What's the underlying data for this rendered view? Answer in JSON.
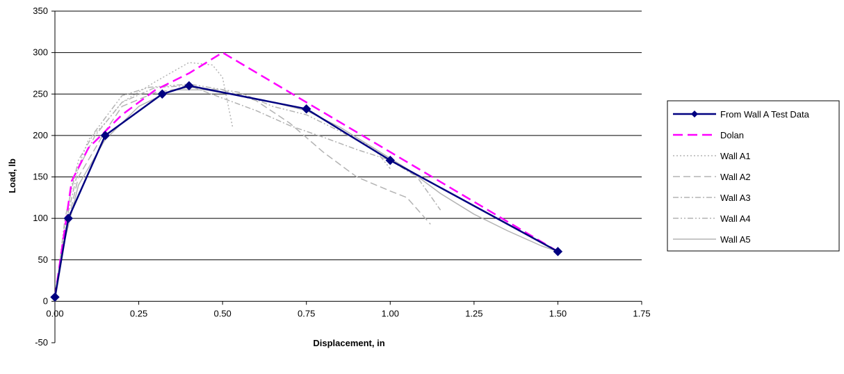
{
  "chart_data": {
    "type": "line",
    "title": "",
    "xlabel": "Displacement, in",
    "ylabel": "Load, lb",
    "xlim": [
      0,
      1.75
    ],
    "ylim": [
      -50,
      350
    ],
    "x_ticks": [
      "0.00",
      "0.25",
      "0.50",
      "0.75",
      "1.00",
      "1.25",
      "1.50",
      "1.75"
    ],
    "x_tick_values": [
      0,
      0.25,
      0.5,
      0.75,
      1.0,
      1.25,
      1.5,
      1.75
    ],
    "y_ticks": [
      "-50",
      "0",
      "50",
      "100",
      "150",
      "200",
      "250",
      "300",
      "350"
    ],
    "y_tick_values": [
      -50,
      0,
      50,
      100,
      150,
      200,
      250,
      300,
      350
    ],
    "grid": "horizontal",
    "legend_position": "right",
    "series": [
      {
        "name": "From Wall A Test Data",
        "color": "#000080",
        "style": "solid-marker",
        "points": [
          [
            0.0,
            5
          ],
          [
            0.04,
            100
          ],
          [
            0.15,
            200
          ],
          [
            0.32,
            250
          ],
          [
            0.4,
            260
          ],
          [
            0.75,
            232
          ],
          [
            1.0,
            170
          ],
          [
            1.5,
            60
          ]
        ]
      },
      {
        "name": "Dolan",
        "color": "#ff00ff",
        "style": "dashed",
        "points": [
          [
            0.0,
            5
          ],
          [
            0.05,
            145
          ],
          [
            0.1,
            185
          ],
          [
            0.2,
            225
          ],
          [
            0.3,
            255
          ],
          [
            0.4,
            275
          ],
          [
            0.5,
            300
          ],
          [
            1.0,
            180
          ],
          [
            1.5,
            60
          ]
        ]
      },
      {
        "name": "Wall A1",
        "color": "#b3b3b3",
        "style": "dotted",
        "points": [
          [
            0.0,
            0
          ],
          [
            0.02,
            60
          ],
          [
            0.05,
            140
          ],
          [
            0.1,
            195
          ],
          [
            0.15,
            215
          ],
          [
            0.2,
            240
          ],
          [
            0.3,
            265
          ],
          [
            0.4,
            288
          ],
          [
            0.47,
            285
          ],
          [
            0.5,
            270
          ],
          [
            0.53,
            210
          ]
        ]
      },
      {
        "name": "Wall A2",
        "color": "#b3b3b3",
        "style": "long-dash",
        "points": [
          [
            0.0,
            0
          ],
          [
            0.03,
            80
          ],
          [
            0.07,
            150
          ],
          [
            0.15,
            205
          ],
          [
            0.2,
            235
          ],
          [
            0.3,
            252
          ],
          [
            0.4,
            258
          ],
          [
            0.5,
            255
          ],
          [
            0.6,
            242
          ],
          [
            0.7,
            215
          ],
          [
            0.8,
            180
          ],
          [
            0.9,
            150
          ],
          [
            1.0,
            133
          ],
          [
            1.05,
            125
          ],
          [
            1.12,
            93
          ]
        ]
      },
      {
        "name": "Wall A3",
        "color": "#b3b3b3",
        "style": "dash-dot",
        "points": [
          [
            0.0,
            0
          ],
          [
            0.03,
            90
          ],
          [
            0.07,
            160
          ],
          [
            0.12,
            200
          ],
          [
            0.2,
            240
          ],
          [
            0.3,
            258
          ],
          [
            0.4,
            260
          ],
          [
            0.5,
            245
          ],
          [
            0.6,
            230
          ],
          [
            0.7,
            212
          ],
          [
            0.8,
            198
          ],
          [
            0.9,
            183
          ],
          [
            1.0,
            170
          ],
          [
            1.08,
            150
          ],
          [
            1.15,
            110
          ]
        ]
      },
      {
        "name": "Wall A4",
        "color": "#b3b3b3",
        "style": "dash-dot-dot",
        "points": [
          [
            0.0,
            0
          ],
          [
            0.03,
            100
          ],
          [
            0.07,
            170
          ],
          [
            0.12,
            205
          ],
          [
            0.2,
            248
          ],
          [
            0.28,
            258
          ],
          [
            0.4,
            262
          ],
          [
            0.55,
            252
          ],
          [
            0.65,
            235
          ],
          [
            0.75,
            225
          ],
          [
            0.85,
            205
          ],
          [
            0.95,
            185
          ],
          [
            1.0,
            160
          ]
        ]
      },
      {
        "name": "Wall A5",
        "color": "#b3b3b3",
        "style": "solid",
        "points": [
          [
            0.0,
            0
          ],
          [
            0.03,
            75
          ],
          [
            0.07,
            140
          ],
          [
            0.15,
            195
          ],
          [
            0.25,
            235
          ],
          [
            0.35,
            255
          ],
          [
            0.45,
            255
          ],
          [
            0.55,
            248
          ],
          [
            0.65,
            240
          ],
          [
            0.75,
            230
          ],
          [
            0.85,
            210
          ],
          [
            0.95,
            185
          ],
          [
            1.05,
            160
          ],
          [
            1.15,
            130
          ],
          [
            1.25,
            105
          ],
          [
            1.35,
            85
          ],
          [
            1.45,
            67
          ],
          [
            1.5,
            60
          ]
        ]
      }
    ]
  }
}
